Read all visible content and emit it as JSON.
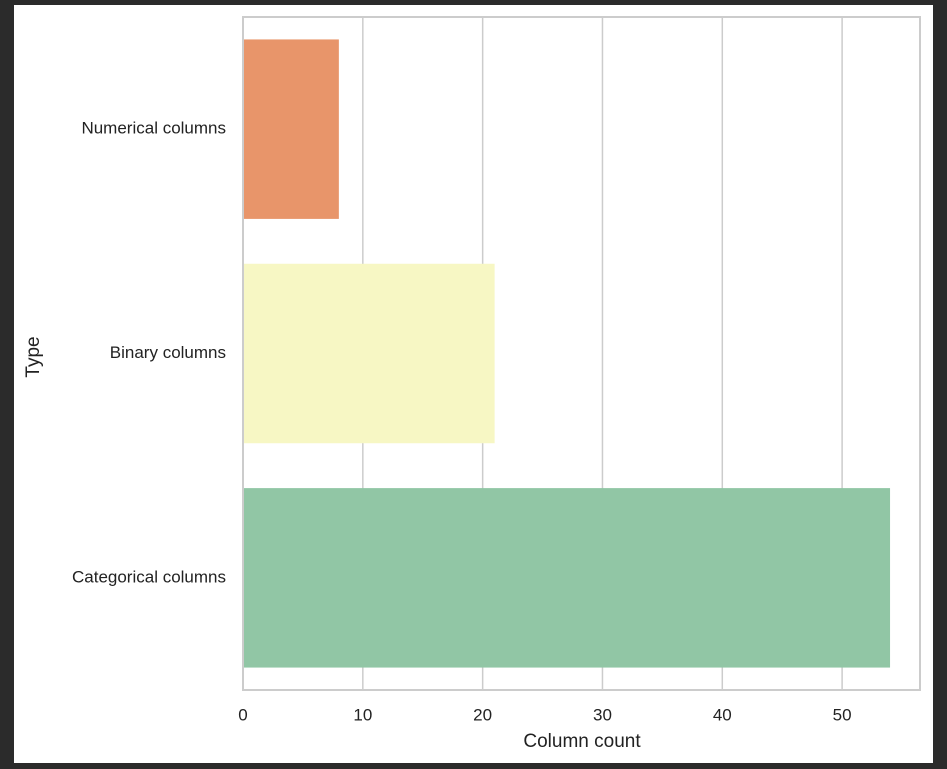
{
  "chart_data": {
    "type": "bar",
    "orientation": "horizontal",
    "categories": [
      "Numerical columns",
      "Binary columns",
      "Categorical columns"
    ],
    "values": [
      8,
      21,
      54
    ],
    "colors": [
      "#e8956a",
      "#f7f7c4",
      "#91c6a5"
    ],
    "xlabel": "Column count",
    "ylabel": "Type",
    "xlim": [
      0,
      56.5
    ],
    "xticks": [
      0,
      10,
      20,
      30,
      40,
      50
    ],
    "grid": true
  }
}
